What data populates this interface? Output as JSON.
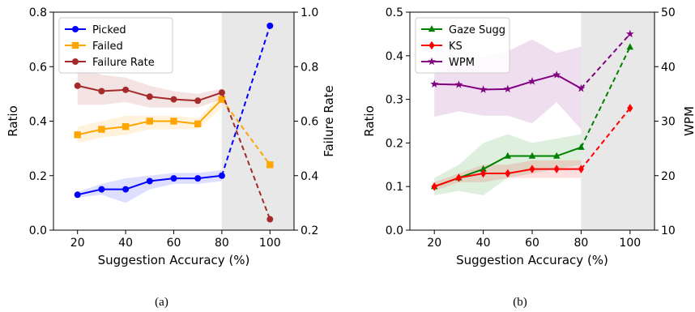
{
  "chart_data": [
    {
      "type": "line",
      "caption": "(a)",
      "xlabel": "Suggestion Accuracy (%)",
      "ylabel": "Ratio",
      "y2label": "Failure Rate",
      "xlim": [
        10,
        110
      ],
      "ylim": [
        0,
        0.8
      ],
      "y2lim": [
        0.2,
        1.0
      ],
      "xticks": [
        20,
        40,
        60,
        80,
        100
      ],
      "yticks": [
        0.0,
        0.2,
        0.4,
        0.6,
        0.8
      ],
      "y2ticks": [
        0.2,
        0.4,
        0.6,
        0.8,
        1.0
      ],
      "shaded_region": [
        80,
        110
      ],
      "shade_color": "#e8e8e8",
      "grid": false,
      "legend": "top-left",
      "x": [
        20,
        30,
        40,
        50,
        60,
        70,
        80,
        100
      ],
      "series": [
        {
          "name": "Picked",
          "axis": "left",
          "color": "#0000ff",
          "marker": "circle",
          "values": [
            0.13,
            0.15,
            0.15,
            0.18,
            0.19,
            0.19,
            0.2,
            0.75
          ],
          "band_low": [
            0.12,
            0.13,
            0.1,
            0.15,
            0.17,
            0.17,
            0.18
          ],
          "band_high": [
            0.14,
            0.17,
            0.19,
            0.2,
            0.21,
            0.21,
            0.22
          ]
        },
        {
          "name": "Failed",
          "axis": "left",
          "color": "#ffa500",
          "marker": "square",
          "values": [
            0.35,
            0.37,
            0.38,
            0.4,
            0.4,
            0.39,
            0.48,
            0.24
          ],
          "band_low": [
            0.32,
            0.34,
            0.35,
            0.37,
            0.37,
            0.37,
            0.45
          ],
          "band_high": [
            0.38,
            0.4,
            0.42,
            0.42,
            0.42,
            0.41,
            0.5
          ]
        },
        {
          "name": "Failure Rate",
          "axis": "right",
          "color": "#a52a2a",
          "marker": "circle",
          "values": [
            0.73,
            0.71,
            0.715,
            0.69,
            0.68,
            0.675,
            0.705,
            0.24
          ],
          "band_low": [
            0.66,
            0.66,
            0.67,
            0.65,
            0.65,
            0.65,
            0.68
          ],
          "band_high": [
            0.8,
            0.77,
            0.76,
            0.73,
            0.71,
            0.7,
            0.72
          ]
        }
      ]
    },
    {
      "type": "line",
      "caption": "(b)",
      "xlabel": "Suggestion Accuracy (%)",
      "ylabel": "Ratio",
      "y2label": "WPM",
      "xlim": [
        10,
        110
      ],
      "ylim": [
        0,
        0.5
      ],
      "y2lim": [
        10,
        50
      ],
      "xticks": [
        20,
        40,
        60,
        80,
        100
      ],
      "yticks": [
        0.0,
        0.1,
        0.2,
        0.3,
        0.4,
        0.5
      ],
      "y2ticks": [
        10,
        20,
        30,
        40,
        50
      ],
      "shaded_region": [
        80,
        110
      ],
      "shade_color": "#e8e8e8",
      "grid": false,
      "legend": "top-left",
      "x": [
        20,
        30,
        40,
        50,
        60,
        70,
        80,
        100
      ],
      "series": [
        {
          "name": "Gaze Sugg",
          "axis": "left",
          "color": "#008000",
          "marker": "triangle",
          "values": [
            0.1,
            0.12,
            0.14,
            0.17,
            0.17,
            0.17,
            0.19,
            0.42
          ],
          "band_low": [
            0.08,
            0.09,
            0.08,
            0.12,
            0.13,
            0.14,
            0.15
          ],
          "band_high": [
            0.12,
            0.15,
            0.2,
            0.22,
            0.2,
            0.21,
            0.22
          ]
        },
        {
          "name": "KS",
          "axis": "left",
          "color": "#ff0000",
          "marker": "diamond",
          "values": [
            0.1,
            0.12,
            0.13,
            0.13,
            0.14,
            0.14,
            0.14,
            0.28
          ],
          "band_low": [
            0.09,
            0.11,
            0.11,
            0.12,
            0.12,
            0.12,
            0.12
          ],
          "band_high": [
            0.11,
            0.13,
            0.15,
            0.15,
            0.16,
            0.16,
            0.16
          ]
        },
        {
          "name": "WPM",
          "axis": "right",
          "color": "#800080",
          "marker": "star",
          "values": [
            36.8,
            36.7,
            35.8,
            35.9,
            37.3,
            38.5,
            36.0,
            46.0
          ],
          "band_low": [
            30.8,
            31.8,
            31.0,
            31.0,
            29.6,
            33.5,
            28.5
          ],
          "band_high": [
            43.5,
            41.8,
            41.8,
            42.8,
            45.0,
            42.5,
            43.7
          ]
        }
      ]
    }
  ]
}
